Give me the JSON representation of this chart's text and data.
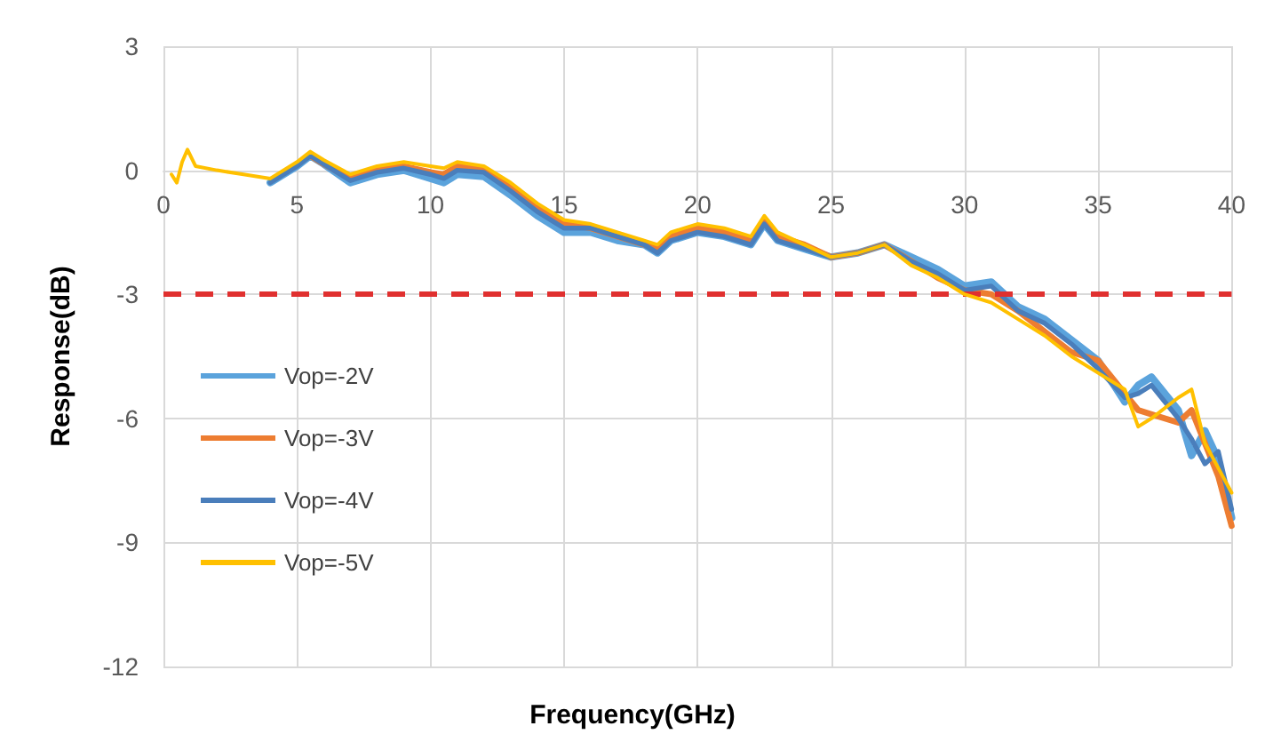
{
  "chart_data": {
    "type": "line",
    "xlabel": "Frequency(GHz)",
    "ylabel": "Response(dB)",
    "x": [
      0.3,
      0.5,
      0.7,
      0.9,
      1.2,
      2,
      3,
      4,
      5,
      5.5,
      6,
      7,
      8,
      9,
      10,
      10.5,
      11,
      12,
      13,
      14,
      15,
      16,
      17,
      18,
      18.5,
      19,
      20,
      21,
      22,
      22.5,
      23,
      24,
      25,
      26,
      27,
      28,
      29,
      30,
      31,
      32,
      33,
      34,
      35,
      36,
      36.5,
      37,
      38,
      38.5,
      39,
      39.5,
      40
    ],
    "xlim": [
      0,
      40
    ],
    "xticks": [
      0,
      5,
      10,
      15,
      20,
      25,
      30,
      35,
      40
    ],
    "ylim": [
      -12,
      3
    ],
    "yticks": [
      -12,
      -9,
      -6,
      -3,
      0,
      3
    ],
    "grid": true,
    "legend": "left",
    "marker": "none",
    "line_style": "solid",
    "series": [
      {
        "name": "Vop=-2V",
        "color": "#5ba3dc",
        "values": [
          null,
          null,
          null,
          null,
          null,
          null,
          null,
          -0.3,
          0.1,
          0.35,
          0.15,
          -0.3,
          -0.1,
          0,
          -0.2,
          -0.3,
          -0.1,
          -0.15,
          -0.6,
          -1.1,
          -1.5,
          -1.5,
          -1.7,
          -1.8,
          -2.0,
          -1.7,
          -1.5,
          -1.6,
          -1.8,
          -1.3,
          -1.7,
          -1.9,
          -2.1,
          -2.0,
          -1.8,
          -2.1,
          -2.4,
          -2.8,
          -2.7,
          -3.3,
          -3.6,
          -4.1,
          -4.6,
          -5.6,
          -5.2,
          -5.0,
          -5.8,
          -6.9,
          -6.3,
          -7.0,
          -8.4
        ]
      },
      {
        "name": "Vop=-3V",
        "color": "#ed7d31",
        "values": [
          null,
          null,
          null,
          null,
          null,
          null,
          null,
          null,
          null,
          0.35,
          0.15,
          -0.2,
          0,
          0.1,
          -0.05,
          -0.1,
          0.1,
          0,
          -0.4,
          -0.9,
          -1.3,
          -1.4,
          -1.6,
          -1.8,
          -1.9,
          -1.6,
          -1.4,
          -1.5,
          -1.7,
          -1.2,
          -1.6,
          -1.8,
          -2.1,
          -2.0,
          -1.8,
          -2.2,
          -2.6,
          -2.9,
          -3.0,
          -3.4,
          -3.9,
          -4.4,
          -4.6,
          -5.4,
          -5.8,
          -5.9,
          -6.1,
          -5.8,
          -6.6,
          -7.4,
          -8.6
        ]
      },
      {
        "name": "Vop=-4V",
        "color": "#4a7ebb",
        "values": [
          null,
          null,
          null,
          null,
          null,
          null,
          null,
          -0.3,
          0.1,
          0.35,
          0.15,
          -0.25,
          -0.05,
          0.05,
          -0.1,
          -0.2,
          0,
          -0.05,
          -0.5,
          -1.0,
          -1.4,
          -1.4,
          -1.6,
          -1.8,
          -2.0,
          -1.7,
          -1.5,
          -1.6,
          -1.8,
          -1.3,
          -1.7,
          -1.9,
          -2.1,
          -2.0,
          -1.8,
          -2.2,
          -2.5,
          -2.9,
          -2.8,
          -3.4,
          -3.7,
          -4.2,
          -4.8,
          -5.5,
          -5.4,
          -5.2,
          -6.0,
          -6.5,
          -7.1,
          -6.8,
          -8.2
        ]
      },
      {
        "name": "Vop=-5V",
        "color": "#ffc000",
        "values": [
          -0.1,
          -0.3,
          0.2,
          0.5,
          0.1,
          0,
          -0.1,
          -0.2,
          0.2,
          0.45,
          0.25,
          -0.1,
          0.1,
          0.2,
          0.1,
          0.05,
          0.2,
          0.1,
          -0.3,
          -0.8,
          -1.2,
          -1.3,
          -1.5,
          -1.7,
          -1.8,
          -1.5,
          -1.3,
          -1.4,
          -1.6,
          -1.1,
          -1.5,
          -1.8,
          -2.1,
          -2.0,
          -1.8,
          -2.3,
          -2.6,
          -3.0,
          -3.2,
          -3.6,
          -4.0,
          -4.5,
          -4.9,
          -5.3,
          -6.2,
          -6.0,
          -5.5,
          -5.3,
          -6.6,
          -7.2,
          -7.8
        ]
      }
    ],
    "ref_lines": [
      {
        "axis": "y",
        "value": -3,
        "color": "#e0302f",
        "line_style": "dashed"
      }
    ]
  }
}
